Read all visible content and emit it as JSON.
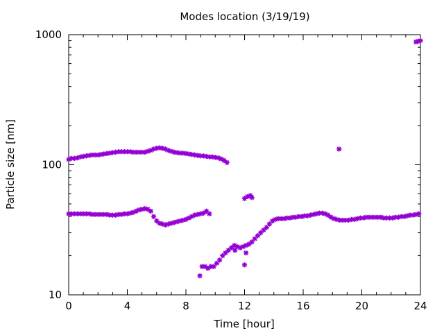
{
  "chart_data": {
    "type": "scatter",
    "title": "Modes location (3/19/19)",
    "xlabel": "Time [hour]",
    "ylabel": "Particle size [nm]",
    "xlim": [
      0,
      24
    ],
    "ylim": [
      10,
      1000
    ],
    "yscale": "log",
    "grid": false,
    "legend": "none",
    "x_ticks": [
      0,
      4,
      8,
      12,
      16,
      20,
      24
    ],
    "x_tick_labels": [
      "0",
      "4",
      "8",
      "12",
      "16",
      "20",
      "24"
    ],
    "y_ticks": [
      10,
      100,
      1000
    ],
    "y_tick_labels": [
      "10",
      "100",
      "1000"
    ],
    "marker_color": "#9400D3",
    "series": [
      {
        "points": [
          [
            0.0,
            110
          ],
          [
            0.2,
            112
          ],
          [
            0.4,
            112
          ],
          [
            0.6,
            113
          ],
          [
            0.8,
            115
          ],
          [
            1.0,
            116
          ],
          [
            1.2,
            117
          ],
          [
            1.4,
            118
          ],
          [
            1.6,
            119
          ],
          [
            1.8,
            119
          ],
          [
            2.0,
            119
          ],
          [
            2.2,
            120
          ],
          [
            2.4,
            121
          ],
          [
            2.6,
            122
          ],
          [
            2.8,
            123
          ],
          [
            3.0,
            124
          ],
          [
            3.2,
            125
          ],
          [
            3.4,
            126
          ],
          [
            3.6,
            126
          ],
          [
            3.8,
            126
          ],
          [
            4.0,
            126
          ],
          [
            4.2,
            126
          ],
          [
            4.4,
            125
          ],
          [
            4.6,
            125
          ],
          [
            4.8,
            125
          ],
          [
            5.0,
            125
          ],
          [
            5.2,
            125
          ],
          [
            5.4,
            127
          ],
          [
            5.6,
            129
          ],
          [
            5.8,
            132
          ],
          [
            6.0,
            134
          ],
          [
            6.2,
            135
          ],
          [
            6.4,
            134
          ],
          [
            6.6,
            132
          ],
          [
            6.8,
            129
          ],
          [
            7.0,
            127
          ],
          [
            7.2,
            125
          ],
          [
            7.4,
            124
          ],
          [
            7.6,
            123
          ],
          [
            7.8,
            123
          ],
          [
            8.0,
            122
          ],
          [
            8.2,
            121
          ],
          [
            8.4,
            120
          ],
          [
            8.6,
            119
          ],
          [
            8.8,
            118
          ],
          [
            9.0,
            117
          ],
          [
            9.2,
            117
          ],
          [
            9.4,
            116
          ],
          [
            9.6,
            115
          ],
          [
            9.8,
            115
          ],
          [
            10.0,
            114
          ],
          [
            10.2,
            113
          ],
          [
            10.4,
            111
          ],
          [
            10.6,
            108
          ],
          [
            10.8,
            104
          ]
        ]
      },
      {
        "points": [
          [
            0.0,
            42
          ],
          [
            0.2,
            42
          ],
          [
            0.4,
            42
          ],
          [
            0.6,
            42
          ],
          [
            0.8,
            42
          ],
          [
            1.0,
            42
          ],
          [
            1.2,
            42
          ],
          [
            1.4,
            42
          ],
          [
            1.6,
            41.5
          ],
          [
            1.8,
            41.5
          ],
          [
            2.0,
            41.5
          ],
          [
            2.2,
            41.5
          ],
          [
            2.4,
            41.5
          ],
          [
            2.6,
            41.5
          ],
          [
            2.8,
            41
          ],
          [
            3.0,
            41
          ],
          [
            3.2,
            41
          ],
          [
            3.4,
            41.5
          ],
          [
            3.6,
            41.5
          ],
          [
            3.8,
            42
          ],
          [
            4.0,
            42
          ],
          [
            4.2,
            42.5
          ],
          [
            4.4,
            43
          ],
          [
            4.6,
            44
          ],
          [
            4.8,
            45
          ],
          [
            5.0,
            45.5
          ],
          [
            5.2,
            46
          ],
          [
            5.4,
            45.5
          ],
          [
            5.6,
            44
          ],
          [
            5.8,
            40
          ],
          [
            6.0,
            37
          ],
          [
            6.2,
            35.5
          ],
          [
            6.4,
            35
          ],
          [
            6.6,
            34.5
          ],
          [
            6.8,
            35
          ],
          [
            7.0,
            35.5
          ],
          [
            7.2,
            36
          ],
          [
            7.4,
            36.5
          ],
          [
            7.6,
            37
          ],
          [
            7.8,
            37.5
          ],
          [
            8.0,
            38
          ],
          [
            8.2,
            39
          ],
          [
            8.4,
            40
          ],
          [
            8.6,
            41
          ],
          [
            8.8,
            41.5
          ],
          [
            9.0,
            42
          ],
          [
            9.2,
            42.5
          ],
          [
            9.4,
            44
          ],
          [
            9.6,
            42
          ]
        ]
      },
      {
        "points": [
          [
            8.95,
            14
          ],
          [
            9.1,
            16.5
          ],
          [
            9.3,
            16.5
          ],
          [
            9.5,
            16
          ],
          [
            9.7,
            16.5
          ],
          [
            9.9,
            16.5
          ],
          [
            10.1,
            17.5
          ],
          [
            10.3,
            18.5
          ],
          [
            10.5,
            20
          ],
          [
            10.7,
            21
          ],
          [
            10.9,
            22
          ],
          [
            11.1,
            23
          ],
          [
            11.3,
            24
          ],
          [
            11.5,
            23.5
          ],
          [
            11.7,
            23
          ],
          [
            11.9,
            23.5
          ],
          [
            12.1,
            24
          ],
          [
            12.3,
            24.5
          ],
          [
            12.5,
            25.5
          ],
          [
            12.7,
            27
          ],
          [
            12.9,
            28.5
          ],
          [
            13.1,
            30
          ],
          [
            13.3,
            31.5
          ],
          [
            13.5,
            33
          ],
          [
            13.7,
            35
          ],
          [
            13.9,
            37
          ],
          [
            14.1,
            38
          ],
          [
            14.3,
            38.5
          ],
          [
            14.5,
            38.5
          ],
          [
            14.7,
            38.5
          ],
          [
            14.9,
            39
          ],
          [
            15.1,
            39
          ],
          [
            15.3,
            39.5
          ],
          [
            15.5,
            39.5
          ],
          [
            15.7,
            40
          ],
          [
            15.9,
            40
          ],
          [
            16.1,
            40.5
          ],
          [
            16.3,
            40.5
          ],
          [
            16.5,
            41
          ],
          [
            16.7,
            41.5
          ],
          [
            16.9,
            42
          ],
          [
            17.1,
            42.5
          ],
          [
            17.3,
            42.5
          ],
          [
            17.5,
            42
          ],
          [
            17.7,
            41
          ],
          [
            17.9,
            39.5
          ],
          [
            18.1,
            38.5
          ],
          [
            18.3,
            38
          ],
          [
            18.5,
            37.5
          ],
          [
            18.7,
            37.5
          ],
          [
            18.9,
            37.5
          ],
          [
            19.1,
            37.5
          ],
          [
            19.3,
            38
          ],
          [
            19.5,
            38
          ],
          [
            19.7,
            38.5
          ],
          [
            19.9,
            39
          ],
          [
            20.1,
            39
          ],
          [
            20.3,
            39.5
          ],
          [
            20.5,
            39.5
          ],
          [
            20.7,
            39.5
          ],
          [
            20.9,
            39.5
          ],
          [
            21.1,
            39.5
          ],
          [
            21.3,
            39.5
          ],
          [
            21.5,
            39
          ],
          [
            21.7,
            39
          ],
          [
            21.9,
            39
          ],
          [
            22.1,
            39
          ],
          [
            22.3,
            39.5
          ],
          [
            22.5,
            39.5
          ],
          [
            22.7,
            40
          ],
          [
            22.9,
            40
          ],
          [
            23.1,
            40.5
          ],
          [
            23.3,
            41
          ],
          [
            23.5,
            41
          ],
          [
            23.7,
            41.5
          ],
          [
            23.9,
            42
          ]
        ]
      },
      {
        "points": [
          [
            11.35,
            22
          ],
          [
            12.0,
            17
          ],
          [
            12.1,
            21
          ],
          [
            12.0,
            55
          ],
          [
            12.2,
            57
          ],
          [
            12.4,
            58
          ],
          [
            12.5,
            56
          ],
          [
            18.45,
            132
          ],
          [
            23.7,
            880
          ],
          [
            23.85,
            890
          ],
          [
            24.0,
            900
          ]
        ]
      }
    ]
  }
}
